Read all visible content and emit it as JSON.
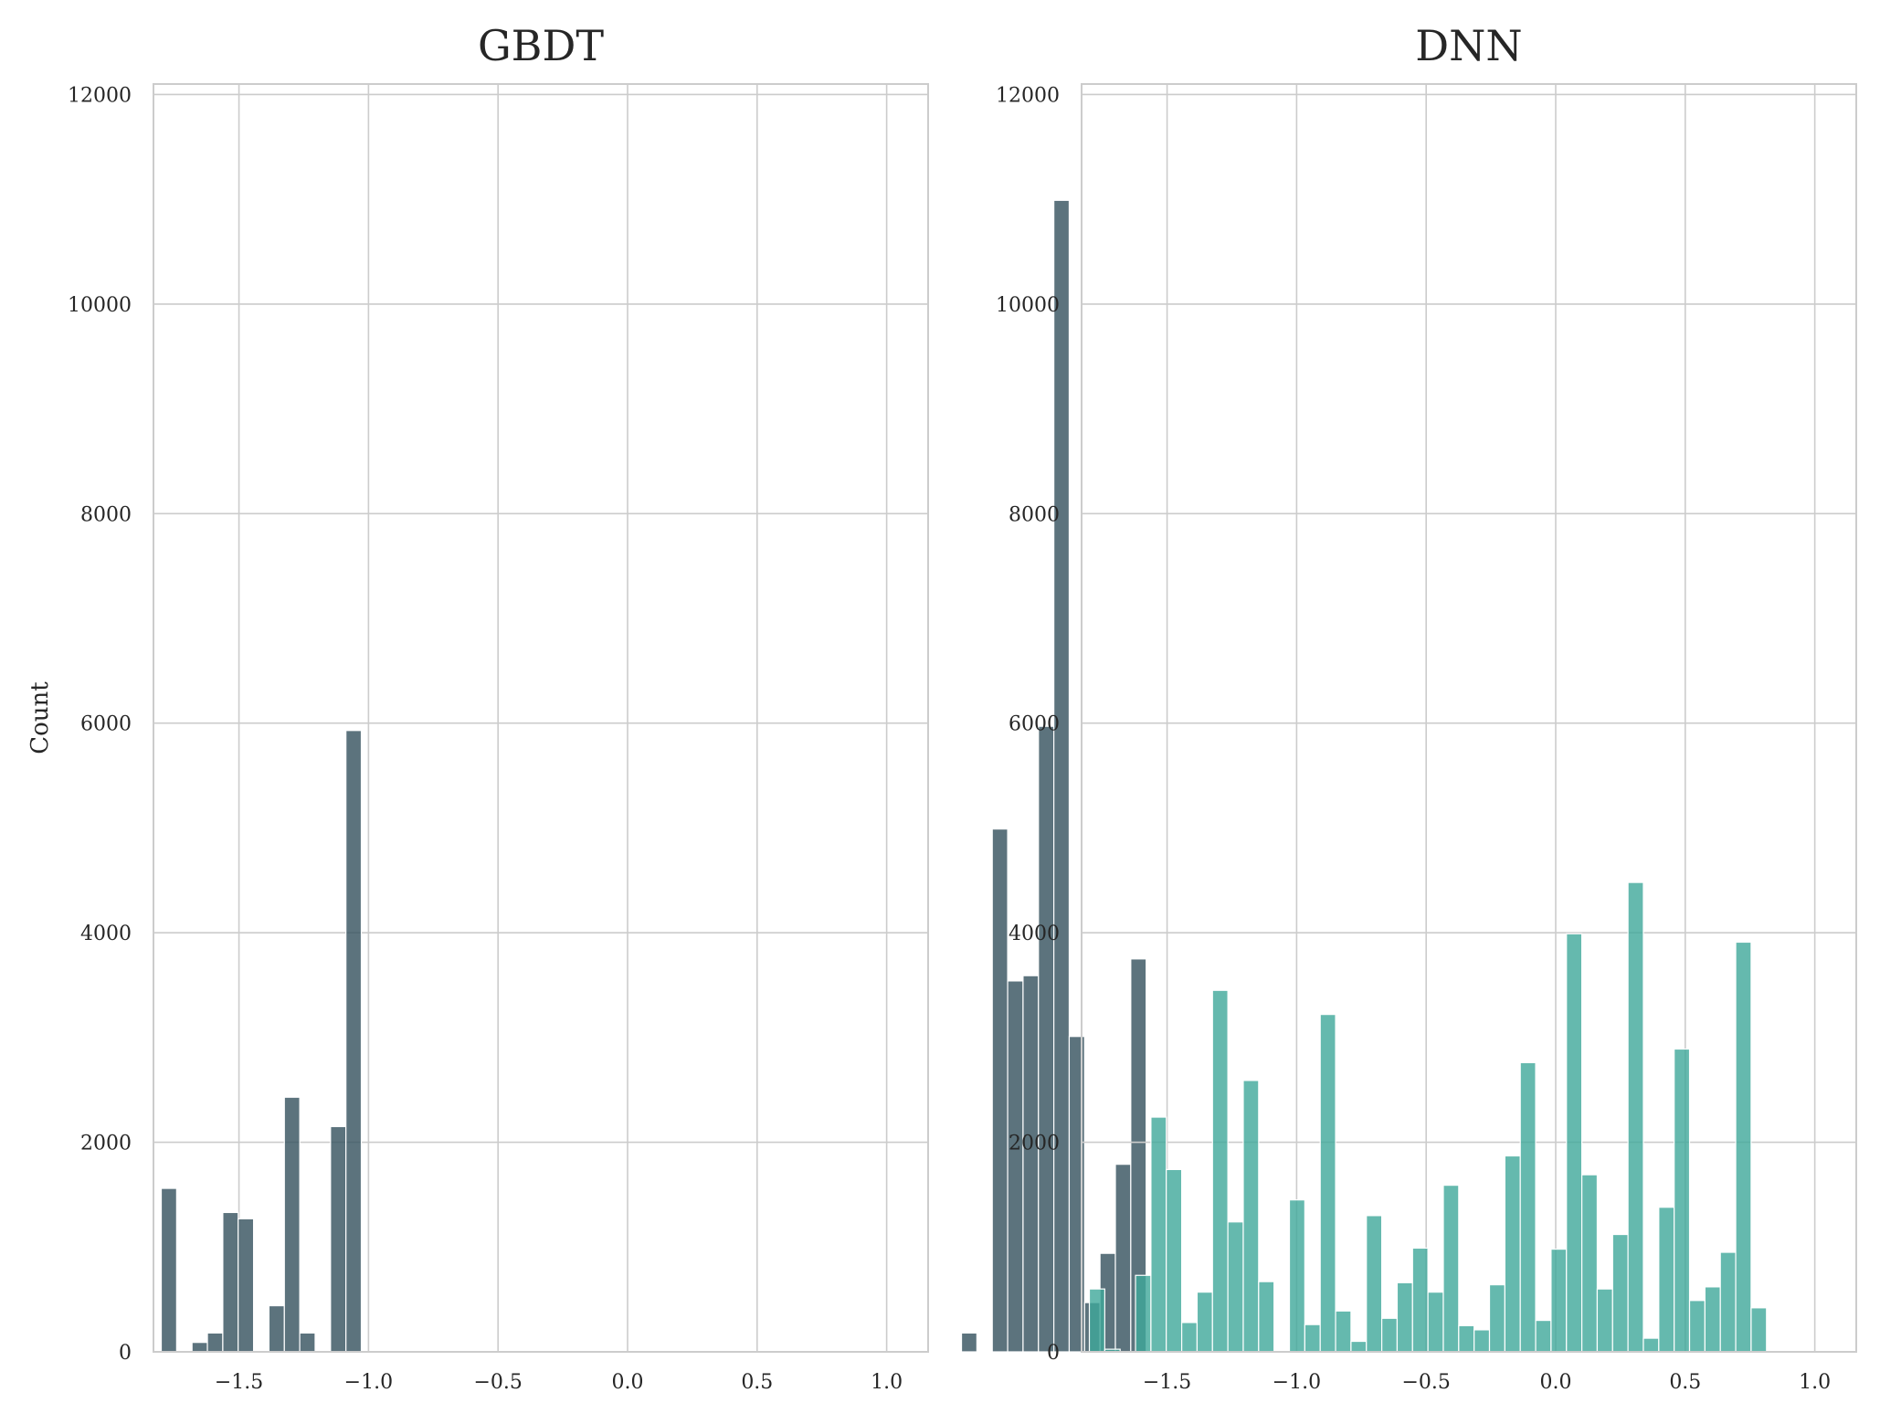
{
  "chart_data": [
    {
      "type": "bar",
      "title": "GBDT",
      "xlabel": "",
      "ylabel": "Count",
      "xlim": [
        -1.83,
        1.16
      ],
      "ylim": [
        0,
        12100
      ],
      "xticks": [
        -1.5,
        -1.0,
        -0.5,
        0.0,
        0.5,
        1.0
      ],
      "xtick_labels": [
        "−1.5",
        "−1.0",
        "−0.5",
        "0.0",
        "0.5",
        "1.0"
      ],
      "yticks": [
        0,
        2000,
        4000,
        6000,
        8000,
        10000,
        12000
      ],
      "ytick_labels": [
        "0",
        "2000",
        "4000",
        "6000",
        "8000",
        "10000",
        "12000"
      ],
      "grid": true,
      "color": "#33505c",
      "bin_start": -1.8,
      "bin_width": 0.0594,
      "values": [
        1560,
        0,
        90,
        180,
        1330,
        1270,
        0,
        440,
        2430,
        180,
        0,
        2150,
        5930,
        0,
        0,
        0,
        0,
        0,
        0,
        0,
        0,
        0,
        0,
        0,
        0,
        0,
        0,
        0,
        0,
        0,
        0,
        0,
        0,
        0,
        0,
        0,
        0,
        0,
        0,
        0,
        0,
        0,
        0,
        0,
        0,
        0,
        0,
        0,
        0,
        0,
        0,
        0,
        180,
        0,
        4990,
        3540,
        3590,
        5970,
        10990,
        3010,
        470,
        940,
        1790,
        3750
      ]
    },
    {
      "type": "bar",
      "title": "DNN",
      "xlabel": "",
      "ylabel": "",
      "xlim": [
        -1.83,
        1.16
      ],
      "ylim": [
        0,
        12100
      ],
      "xticks": [
        -1.5,
        -1.0,
        -0.5,
        0.0,
        0.5,
        1.0
      ],
      "xtick_labels": [
        "−1.5",
        "−1.0",
        "−0.5",
        "0.0",
        "0.5",
        "1.0"
      ],
      "yticks": [
        0,
        2000,
        4000,
        6000,
        8000,
        10000,
        12000
      ],
      "ytick_labels": [
        "0",
        "2000",
        "4000",
        "6000",
        "8000",
        "10000",
        "12000"
      ],
      "grid": true,
      "color": "#3fa89a",
      "bin_start": -1.8,
      "bin_width": 0.0594,
      "values": [
        600,
        25,
        0,
        730,
        2240,
        1740,
        280,
        570,
        3450,
        1240,
        2590,
        670,
        0,
        1450,
        260,
        3220,
        390,
        100,
        1300,
        320,
        660,
        990,
        570,
        1590,
        250,
        210,
        640,
        1870,
        2760,
        300,
        980,
        3990,
        1690,
        600,
        1120,
        4480,
        130,
        1380,
        2890,
        490,
        620,
        950,
        3910,
        420
      ]
    }
  ]
}
